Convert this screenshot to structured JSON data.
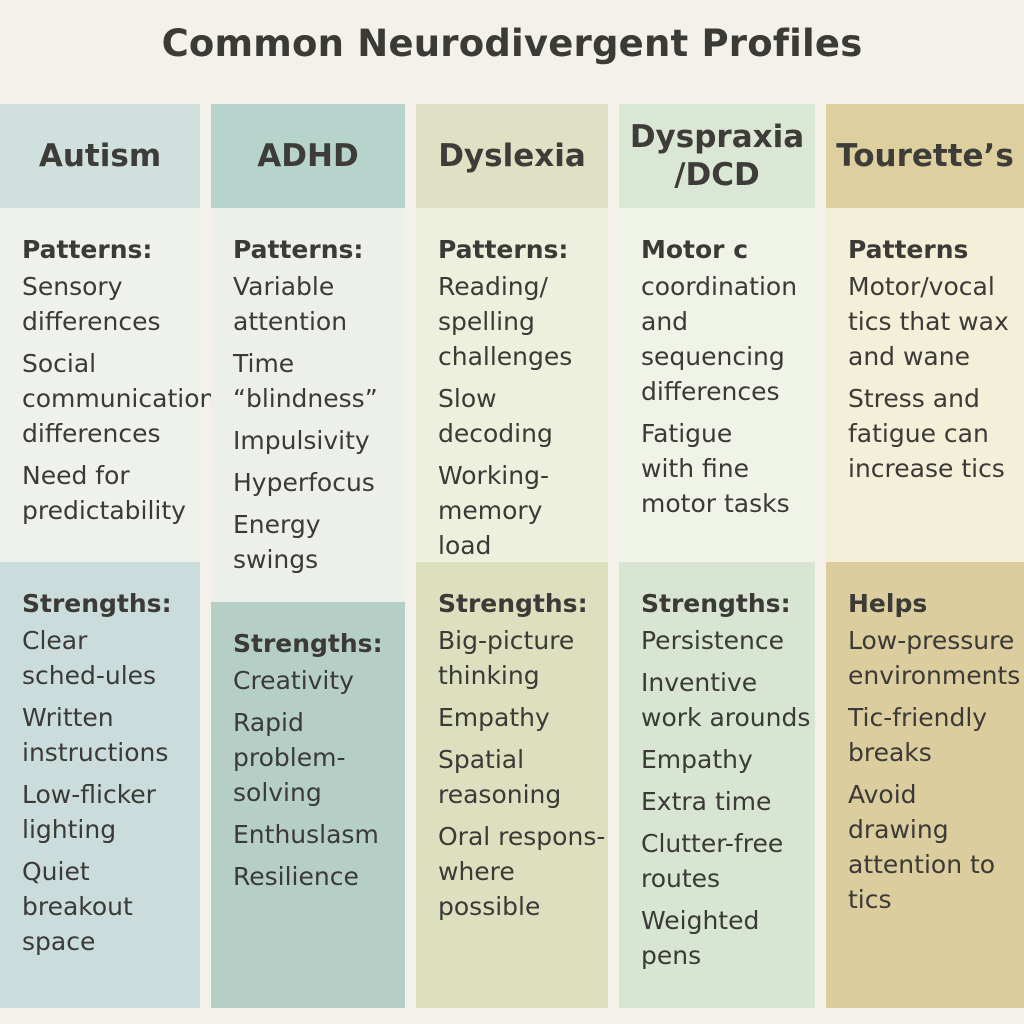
{
  "title": "Common Neurodivergent Profiles",
  "columns": [
    {
      "heading": "Autism",
      "top_label": "Patterns:",
      "top_items": [
        "Sensory differences",
        "Social communication differences",
        "Need for predictability"
      ],
      "bottom_label": "Strengths:",
      "bottom_items": [
        "Clear sched-ules",
        "Written instructions",
        "Low-flicker lighting",
        "Quiet breakout space"
      ]
    },
    {
      "heading": "ADHD",
      "top_label": "Patterns:",
      "top_items": [
        "Variable attention",
        "Time “blindness”",
        "Impulsivity",
        "Hyperfocus",
        "Energy swings"
      ],
      "bottom_label": "Strengths:",
      "bottom_items": [
        "Creativity",
        "Rapid problem-solving",
        "Enthuslasm",
        "Resilience"
      ]
    },
    {
      "heading": "Dyslexia",
      "top_label": "Patterns:",
      "top_items": [
        "Reading/ spelling challenges",
        "Slow decoding",
        "Working-memory load"
      ],
      "bottom_label": "Strengths:",
      "bottom_items": [
        "Big-picture thinking",
        "Empathy",
        "Spatial reasoning",
        "Oral respons-where possible"
      ]
    },
    {
      "heading": "Dyspraxia /DCD",
      "top_label": "Motor c",
      "top_items": [
        "coordination and sequencing differences",
        "Fatigue with fine motor tasks"
      ],
      "bottom_label": "Strengths:",
      "bottom_items": [
        "Persistence",
        "Inventive work arounds",
        "Empathy",
        "Extra time",
        "Clutter-free routes",
        "Weighted pens"
      ]
    },
    {
      "heading": "Tourette’s",
      "top_label": "Patterns",
      "top_items": [
        "Motor/vocal tics that wax and wane",
        "Stress and fatigue can increase tics"
      ],
      "bottom_label": "Helps",
      "bottom_items": [
        "Low-pressure environments",
        "Tic-friendly breaks",
        "Avoid drawing attention to tics"
      ]
    }
  ]
}
